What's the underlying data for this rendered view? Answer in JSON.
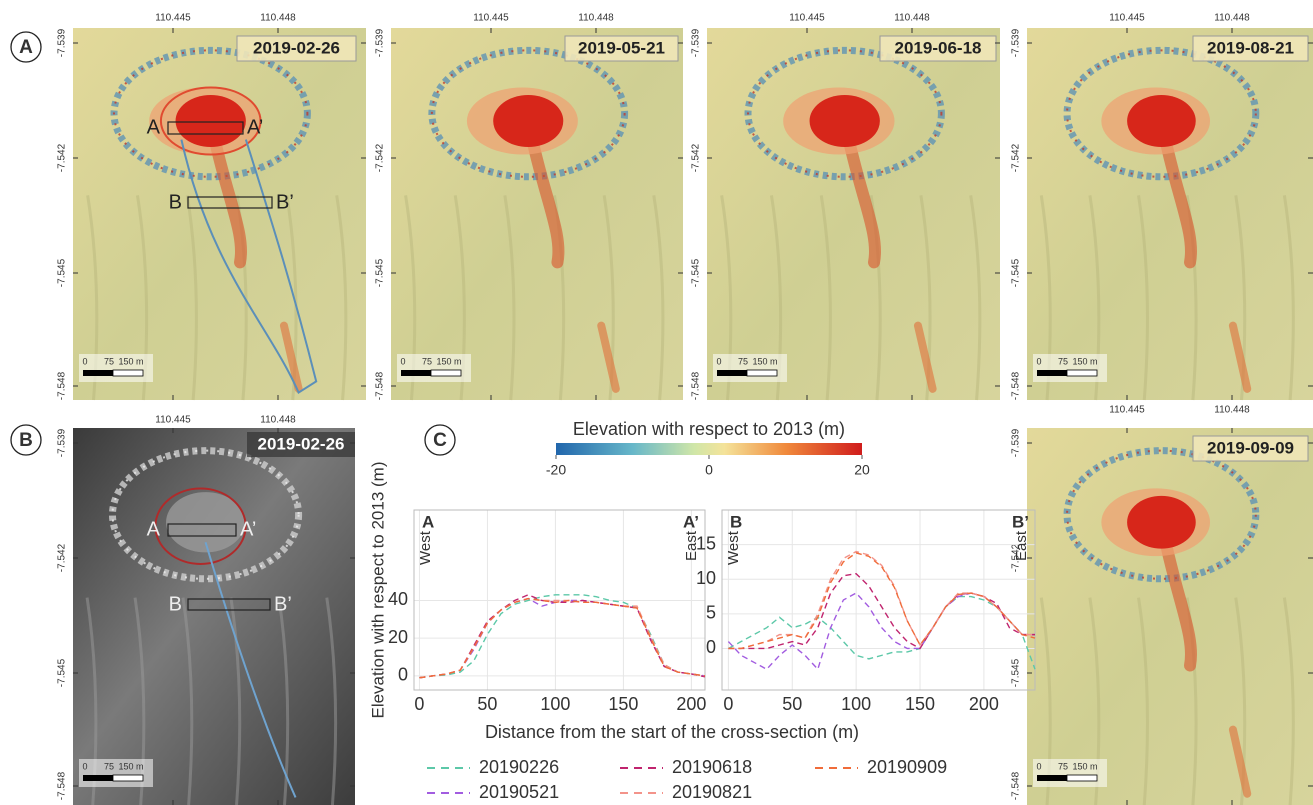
{
  "panels": [
    "A",
    "B",
    "C"
  ],
  "map_axes": {
    "xticks": [
      110.445,
      110.448
    ],
    "yticks": [
      -7.539,
      -7.542,
      -7.545,
      -7.548
    ]
  },
  "maps": [
    {
      "date": "2019-02-26"
    },
    {
      "date": "2019-05-21"
    },
    {
      "date": "2019-06-18"
    },
    {
      "date": "2019-08-21"
    },
    {
      "date": "2019-02-26"
    },
    {
      "date": "2019-09-09"
    }
  ],
  "sections": {
    "a": "A",
    "a_end": "A’",
    "b": "B",
    "b_end": "B’"
  },
  "scale_bar": {
    "labels": [
      "0",
      "75",
      "150 m"
    ]
  },
  "colorbar": {
    "title": "Elevation with respect to 2013 (m)",
    "lim": [
      -20,
      20
    ],
    "ticks": [
      -20,
      0,
      20
    ]
  },
  "shared_axes": {
    "ylabel": "Elevation with respect to 2013 (m)",
    "xlabel": "Distance from the start of the cross-section (m)"
  },
  "chart_data": [
    {
      "type": "line",
      "start_label": "A",
      "end_label": "A’",
      "left_note": "West",
      "right_note": "East",
      "grid": true,
      "x": [
        0,
        10,
        20,
        30,
        40,
        50,
        60,
        70,
        80,
        90,
        100,
        110,
        120,
        130,
        140,
        150,
        160,
        170,
        180,
        190,
        200,
        210
      ],
      "xlim": [
        -4,
        210
      ],
      "xticks": [
        0,
        50,
        100,
        150,
        200
      ],
      "ylim": [
        -7.5,
        88
      ],
      "yticks": [
        0,
        20,
        40
      ],
      "series": [
        {
          "name": "20190226",
          "color": "#5cc8a8",
          "values": [
            -1,
            0,
            0.5,
            2,
            8,
            22,
            33,
            38,
            40,
            42,
            43,
            43,
            43,
            42,
            40,
            39,
            36,
            22,
            6,
            2,
            1,
            0
          ]
        },
        {
          "name": "20190521",
          "color": "#a25ce0",
          "values": [
            -1,
            0,
            1,
            3,
            14,
            28,
            35,
            39,
            41,
            37,
            39,
            40,
            40,
            39,
            38,
            37,
            36,
            20,
            5,
            2,
            1,
            0
          ]
        },
        {
          "name": "20190618",
          "color": "#c0246e",
          "values": [
            -1,
            0,
            1,
            3,
            16,
            29,
            35,
            40,
            43,
            40,
            39,
            39,
            40,
            39,
            38,
            37,
            36,
            19,
            5,
            2,
            1,
            -0.5
          ]
        },
        {
          "name": "20190821",
          "color": "#f3938a",
          "values": [
            -1,
            0,
            1,
            3,
            15,
            28,
            35,
            39,
            41,
            40,
            40,
            40,
            39,
            39,
            38,
            37,
            37,
            21,
            6,
            2,
            1,
            0
          ]
        },
        {
          "name": "20190909",
          "color": "#f06c3a",
          "values": [
            -1,
            0,
            1,
            3,
            15,
            28,
            35,
            39,
            41,
            40,
            39,
            40,
            39,
            39,
            38,
            37,
            36,
            20,
            5,
            2,
            1,
            0
          ]
        }
      ]
    },
    {
      "type": "line",
      "start_label": "B",
      "end_label": "B’",
      "left_note": "West",
      "right_note": "East",
      "grid": true,
      "x": [
        0,
        10,
        20,
        30,
        40,
        50,
        60,
        70,
        80,
        90,
        100,
        110,
        120,
        130,
        140,
        150,
        160,
        170,
        180,
        190,
        200,
        210,
        220,
        230,
        240
      ],
      "xlim": [
        -5,
        240
      ],
      "xticks": [
        0,
        50,
        100,
        150,
        200
      ],
      "ylim": [
        -6,
        20
      ],
      "yticks": [
        0,
        5,
        10,
        15
      ],
      "series": [
        {
          "color": "#5cc8a8",
          "values": [
            0,
            1,
            2,
            3,
            4.5,
            3,
            3.5,
            4.5,
            3,
            1,
            -1,
            -1.5,
            -1,
            -0.5,
            -0.5,
            0,
            3,
            6,
            7.5,
            7.5,
            7,
            6,
            4,
            2,
            -3
          ]
        },
        {
          "color": "#a25ce0",
          "values": [
            1,
            -1,
            -2,
            -3,
            -1,
            0.5,
            -1,
            -3,
            3,
            7,
            8,
            6,
            3,
            1,
            0,
            0,
            3,
            6,
            7.5,
            8,
            7.5,
            6,
            4,
            2,
            2
          ]
        },
        {
          "color": "#c0246e",
          "values": [
            0,
            0,
            0,
            0,
            0.5,
            1,
            0.5,
            3,
            8,
            10.5,
            10.8,
            9,
            6,
            3,
            1,
            0,
            3,
            6,
            7.8,
            8,
            7.5,
            6.5,
            3,
            2,
            2
          ]
        },
        {
          "color": "#f3938a",
          "values": [
            0,
            0,
            0.5,
            1,
            2,
            2,
            1.5,
            5,
            10,
            13,
            14,
            13.5,
            12,
            9,
            4,
            0.5,
            3,
            6,
            8,
            8,
            7.5,
            6,
            4,
            2,
            2
          ]
        },
        {
          "color": "#f06c3a",
          "values": [
            0,
            0,
            0.5,
            1,
            1.5,
            2,
            1.5,
            4.5,
            9.5,
            12.5,
            13.8,
            13.3,
            11.8,
            8.8,
            4,
            0.5,
            3,
            6,
            7.8,
            8,
            7.5,
            6,
            4,
            2,
            1.5
          ]
        }
      ]
    }
  ]
}
